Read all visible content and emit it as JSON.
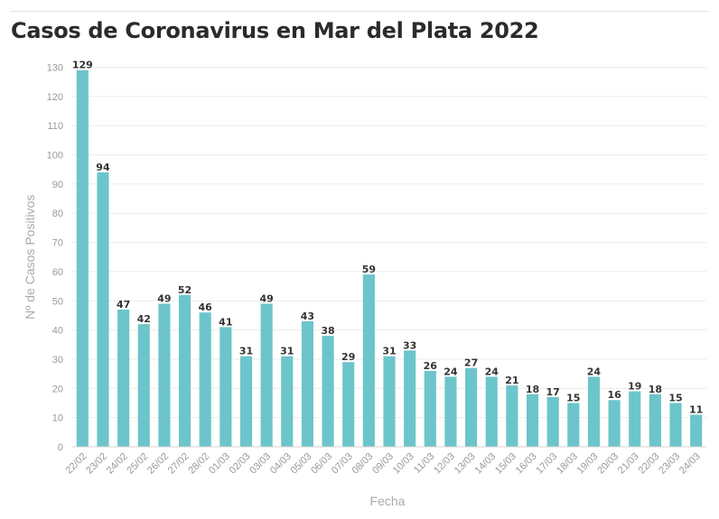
{
  "chart_data": {
    "type": "bar",
    "title": "Casos de Coronavirus en Mar del Plata 2022",
    "xlabel": "Fecha",
    "ylabel": "Nº de Casos Positivos",
    "ylim": [
      0,
      130
    ],
    "yticks": [
      0,
      10,
      20,
      30,
      40,
      50,
      60,
      70,
      80,
      90,
      100,
      110,
      120,
      130
    ],
    "grid": true,
    "bar_color": "#6cc5cb",
    "categories": [
      "22/02",
      "23/02",
      "24/02",
      "25/02",
      "26/02",
      "27/02",
      "28/02",
      "01/03",
      "02/03",
      "03/03",
      "04/03",
      "05/03",
      "06/03",
      "07/03",
      "08/03",
      "09/03",
      "10/03",
      "11/03",
      "12/03",
      "13/03",
      "14/03",
      "15/03",
      "16/03",
      "17/03",
      "18/03",
      "19/03",
      "20/03",
      "21/03",
      "22/03",
      "23/03",
      "24/03"
    ],
    "values": [
      129,
      94,
      47,
      42,
      49,
      52,
      46,
      41,
      31,
      49,
      31,
      43,
      38,
      29,
      59,
      31,
      33,
      26,
      24,
      27,
      24,
      21,
      18,
      17,
      15,
      24,
      16,
      19,
      18,
      15,
      11
    ]
  }
}
